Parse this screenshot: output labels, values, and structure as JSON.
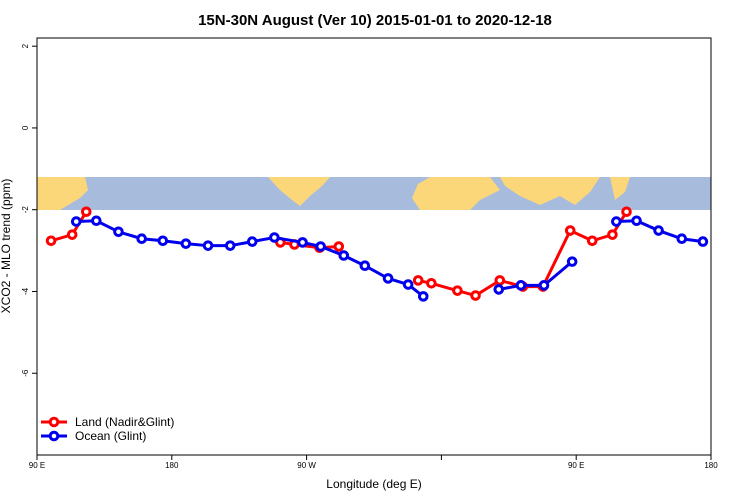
{
  "chart_data": {
    "type": "line",
    "title": "15N-30N August (Ver 10)   2015-01-01 to 2020-12-18",
    "xlabel": "Longitude (deg E)",
    "ylabel": "XCO2 - MLO trend (ppm)",
    "xlim": [
      90,
      540
    ],
    "ylim": [
      -8,
      2.2
    ],
    "xticks": [
      {
        "value": 90,
        "label": "90 E"
      },
      180,
      {
        "value": 270,
        "label": "90 W"
      },
      {
        "value": 360,
        "label": null
      },
      {
        "value": 450,
        "label": "90 E"
      },
      {
        "value": 540,
        "label": "180"
      }
    ],
    "yticks": [
      2,
      0,
      -2,
      -4,
      -6
    ],
    "legend": "bottom-left",
    "series": [
      {
        "name": "Land (Nadir&Glint)",
        "color": "#ff0000",
        "x": [
          99.4,
          113.5,
          122.9,
          190,
          252.5,
          261.9,
          278.7,
          291.5,
          320,
          344.5,
          353.3,
          370.7,
          382.8,
          399,
          414.4,
          427.8,
          446,
          460.7,
          474.2,
          483.6
        ],
        "values": [
          -2.76,
          -2.61,
          -2.05,
          null,
          -2.8,
          -2.85,
          -2.93,
          -2.9,
          null,
          -3.73,
          -3.8,
          -3.98,
          -4.1,
          -3.73,
          -3.88,
          -3.88,
          -2.51,
          -2.76,
          -2.61,
          -2.05
        ]
      },
      {
        "name": "Ocean (Glint)",
        "color": "#0000ee",
        "x": [
          116.2,
          129.6,
          144.4,
          159.9,
          174,
          189.4,
          204.2,
          219,
          233.7,
          248.5,
          267.3,
          279.4,
          294.8,
          308.9,
          324.4,
          337.8,
          347.9,
          370,
          398.3,
          413.1,
          428.5,
          447.3,
          460,
          476.8,
          490.3,
          505,
          520.5,
          534.6
        ],
        "values": [
          -2.29,
          -2.27,
          -2.54,
          -2.71,
          -2.76,
          -2.83,
          -2.88,
          -2.88,
          -2.78,
          -2.68,
          -2.8,
          -2.9,
          -3.12,
          -3.37,
          -3.68,
          -3.83,
          -4.12,
          null,
          -3.95,
          -3.85,
          -3.85,
          -3.27,
          null,
          -2.29,
          -2.27,
          -2.51,
          -2.71,
          -2.78
        ]
      }
    ]
  }
}
